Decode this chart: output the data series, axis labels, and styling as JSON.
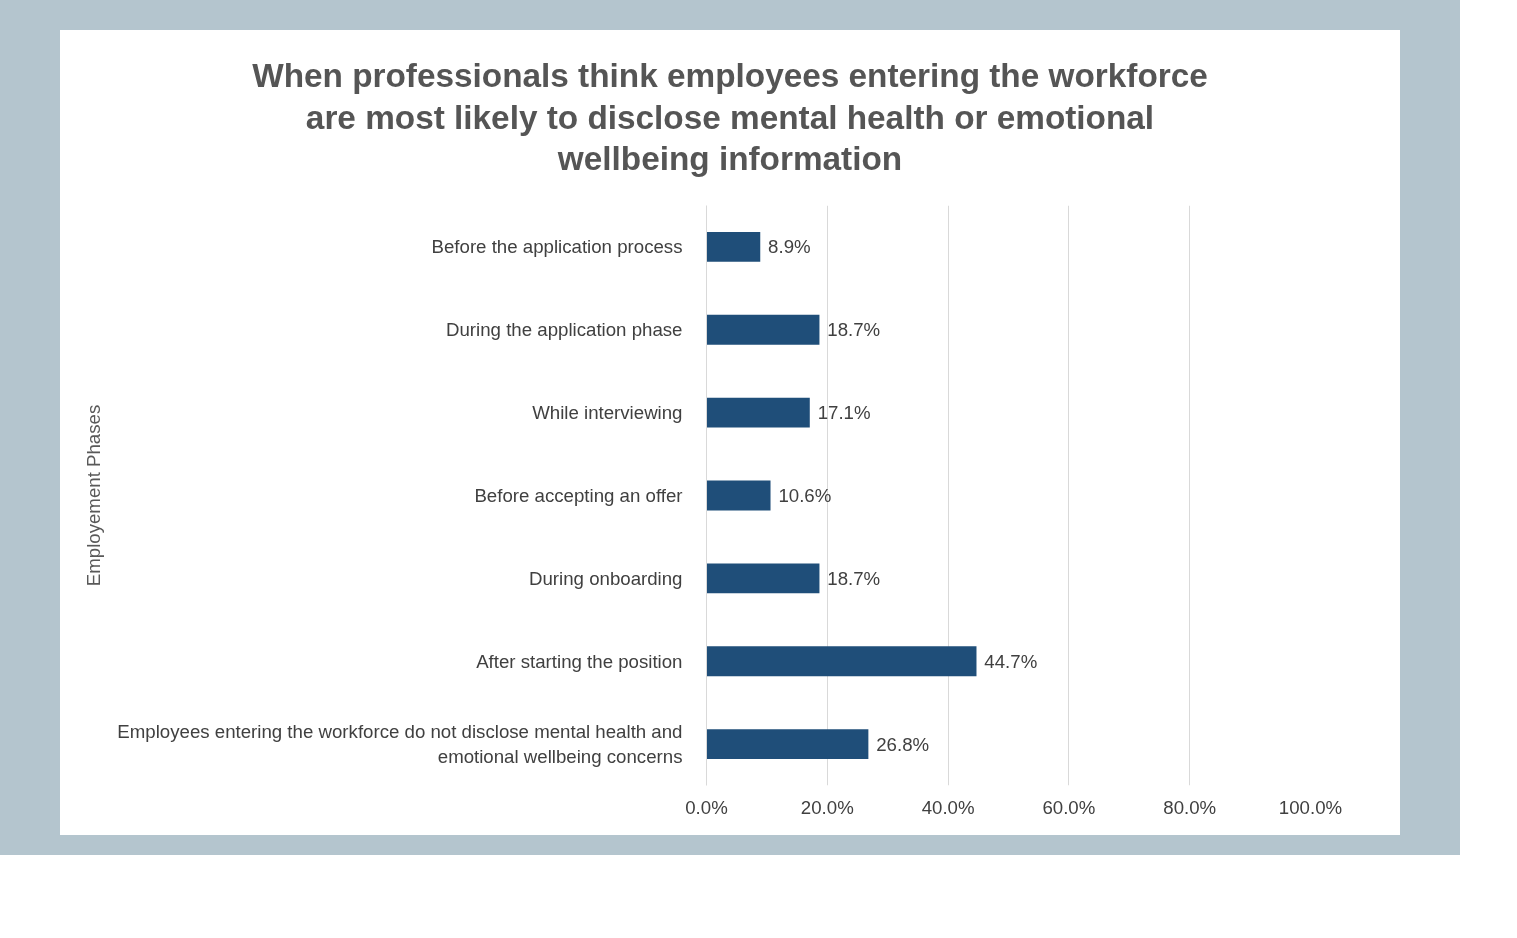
{
  "chart_data": {
    "type": "bar",
    "orientation": "horizontal",
    "title": "When professionals think employees entering the workforce are most likely to disclose mental health or emotional wellbeing information",
    "ylabel": "Employement Phases",
    "categories": [
      "Before the application process",
      "During the application phase",
      "While interviewing",
      "Before accepting an offer",
      "During onboarding",
      "After starting the position",
      "Employees entering the workforce do not disclose mental health and emotional wellbeing concerns"
    ],
    "values": [
      8.9,
      18.7,
      17.1,
      10.6,
      18.7,
      44.7,
      26.8
    ],
    "value_labels": [
      "8.9%",
      "18.7%",
      "17.1%",
      "10.6%",
      "18.7%",
      "44.7%",
      "26.8%"
    ],
    "color": "#1f4e79",
    "xlim": [
      0,
      100
    ],
    "xticks": [
      {
        "value": 0,
        "label": "0.0%"
      },
      {
        "value": 20,
        "label": "20.0%"
      },
      {
        "value": 40,
        "label": "40.0%"
      },
      {
        "value": 60,
        "label": "60.0%"
      },
      {
        "value": 80,
        "label": "80.0%"
      },
      {
        "value": 100,
        "label": "100.0%"
      }
    ],
    "grid": "x"
  }
}
